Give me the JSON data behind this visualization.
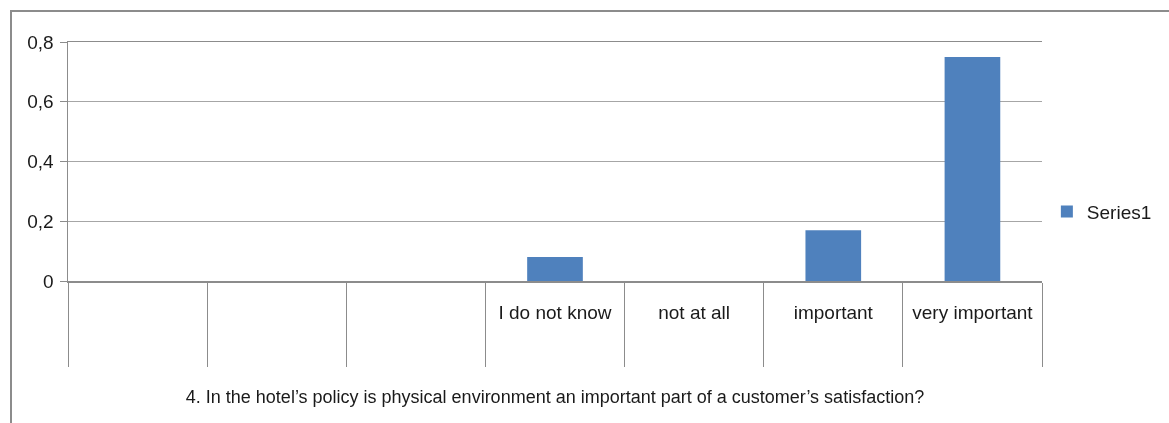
{
  "chart_data": {
    "type": "bar",
    "categories": [
      null,
      null,
      null,
      "I do not know",
      "not at all",
      "important",
      "very important"
    ],
    "series": [
      {
        "name": "Series1",
        "color": "#4f81bd",
        "values": [
          null,
          null,
          null,
          0.08,
          0,
          0.17,
          0.75
        ]
      }
    ],
    "xlabel": "4. In the hotel’s policy is physical environment an important part of a customer’s satisfaction?",
    "ylim": [
      0,
      0.8
    ],
    "yticks": [
      {
        "value": 0,
        "label": "0"
      },
      {
        "value": 0.2,
        "label": "0,2"
      },
      {
        "value": 0.4,
        "label": "0,4"
      },
      {
        "value": 0.6,
        "label": "0,6"
      },
      {
        "value": 0.8,
        "label": "0,8"
      }
    ],
    "grid": "y",
    "legend": "right"
  }
}
